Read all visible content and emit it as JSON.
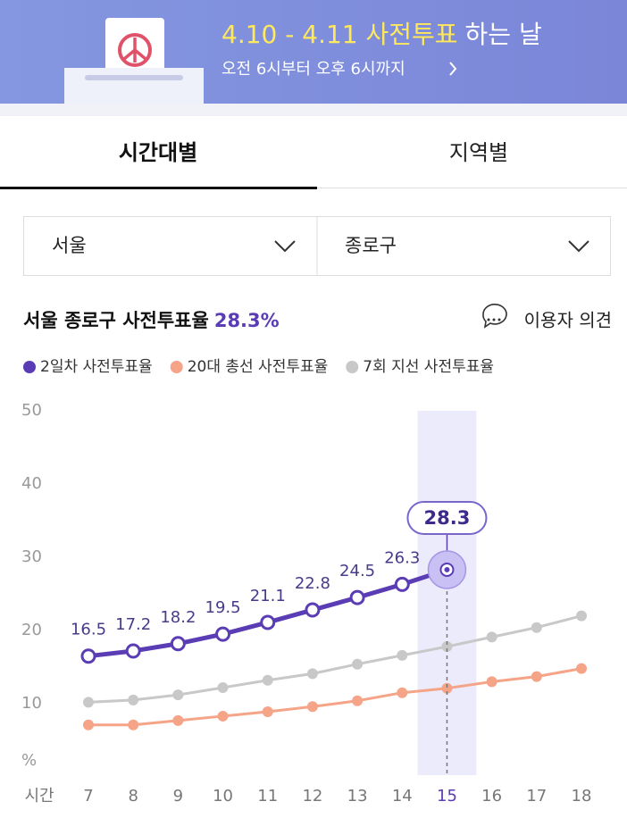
{
  "banner": {
    "title_highlight": "4.10 - 4.11 사전투표",
    "title_rest": "하는 날",
    "subtitle": "오전 6시부터 오후 6시까지"
  },
  "tabs": [
    "시간대별",
    "지역별"
  ],
  "selects": [
    "서울",
    "종로구"
  ],
  "heading": {
    "text": "서울 종로구 사전투표율",
    "value": "28.3%"
  },
  "feedback": "이용자 의견",
  "chart_data": {
    "type": "line",
    "x_label": "시간",
    "y_label": "%",
    "x": [
      7,
      8,
      9,
      10,
      11,
      12,
      13,
      14,
      15,
      16,
      17,
      18
    ],
    "xlim": [
      7,
      18
    ],
    "ylim": [
      0,
      50
    ],
    "yticks": [
      10,
      20,
      30,
      40,
      50
    ],
    "grid": false,
    "highlight_x": 15,
    "highlight_label": "28.3",
    "series": [
      {
        "name": "2일차 사전투표율",
        "color": "#5a3cb4",
        "values": [
          16.5,
          17.2,
          18.2,
          19.5,
          21.1,
          22.8,
          24.5,
          26.3,
          28.3,
          null,
          null,
          null
        ],
        "data_labels": true
      },
      {
        "name": "20대 총선 사전투표율",
        "color": "#f5a487",
        "values": [
          7.1,
          7.1,
          7.7,
          8.3,
          8.9,
          9.6,
          10.4,
          11.5,
          12.1,
          13.0,
          13.7,
          14.8
        ]
      },
      {
        "name": "7회 지선 사전투표율",
        "color": "#c8c8c8",
        "values": [
          10.2,
          10.5,
          11.2,
          12.2,
          13.2,
          14.1,
          15.4,
          16.6,
          17.8,
          19.1,
          20.4,
          22.0
        ]
      }
    ]
  }
}
